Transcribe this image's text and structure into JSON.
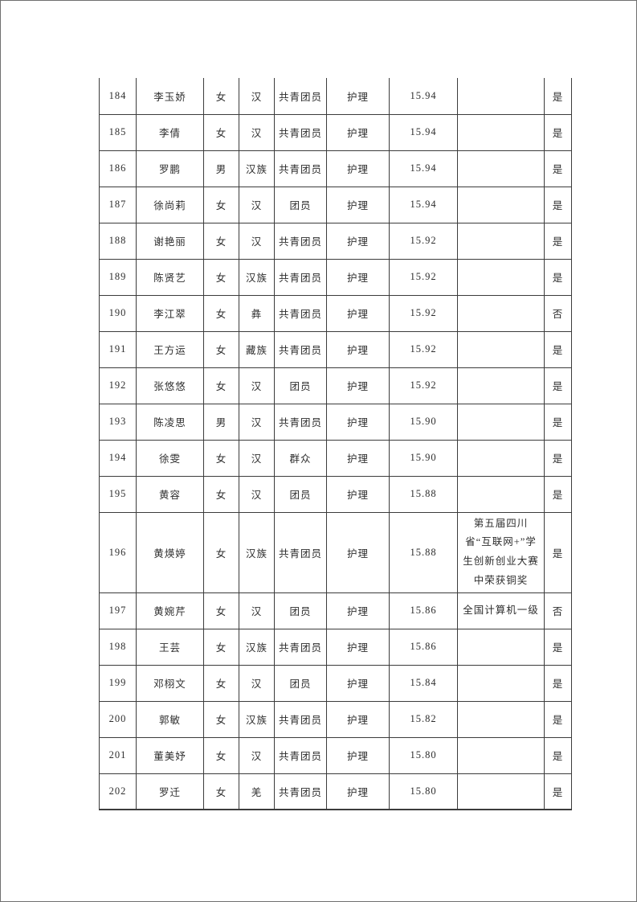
{
  "page": {
    "background_color": "#ffffff",
    "border_color": "#6f6f6f",
    "grid_color": "#3c3c3c"
  },
  "table": {
    "rows": [
      {
        "no": "184",
        "name": "李玉娇",
        "gender": "女",
        "ethnicity": "汉",
        "political": "共青团员",
        "major": "护理",
        "score": "15.94",
        "award": "",
        "confirm": "是"
      },
      {
        "no": "185",
        "name": "李倩",
        "gender": "女",
        "ethnicity": "汉",
        "political": "共青团员",
        "major": "护理",
        "score": "15.94",
        "award": "",
        "confirm": "是"
      },
      {
        "no": "186",
        "name": "罗鹏",
        "gender": "男",
        "ethnicity": "汉族",
        "political": "共青团员",
        "major": "护理",
        "score": "15.94",
        "award": "",
        "confirm": "是"
      },
      {
        "no": "187",
        "name": "徐尚莉",
        "gender": "女",
        "ethnicity": "汉",
        "political": "团员",
        "major": "护理",
        "score": "15.94",
        "award": "",
        "confirm": "是"
      },
      {
        "no": "188",
        "name": "谢艳丽",
        "gender": "女",
        "ethnicity": "汉",
        "political": "共青团员",
        "major": "护理",
        "score": "15.92",
        "award": "",
        "confirm": "是"
      },
      {
        "no": "189",
        "name": "陈贤艺",
        "gender": "女",
        "ethnicity": "汉族",
        "political": "共青团员",
        "major": "护理",
        "score": "15.92",
        "award": "",
        "confirm": "是"
      },
      {
        "no": "190",
        "name": "李江翠",
        "gender": "女",
        "ethnicity": "彝",
        "political": "共青团员",
        "major": "护理",
        "score": "15.92",
        "award": "",
        "confirm": "否"
      },
      {
        "no": "191",
        "name": "王方运",
        "gender": "女",
        "ethnicity": "藏族",
        "political": "共青团员",
        "major": "护理",
        "score": "15.92",
        "award": "",
        "confirm": "是"
      },
      {
        "no": "192",
        "name": "张悠悠",
        "gender": "女",
        "ethnicity": "汉",
        "political": "团员",
        "major": "护理",
        "score": "15.92",
        "award": "",
        "confirm": "是"
      },
      {
        "no": "193",
        "name": "陈凌思",
        "gender": "男",
        "ethnicity": "汉",
        "political": "共青团员",
        "major": "护理",
        "score": "15.90",
        "award": "",
        "confirm": "是"
      },
      {
        "no": "194",
        "name": "徐雯",
        "gender": "女",
        "ethnicity": "汉",
        "political": "群众",
        "major": "护理",
        "score": "15.90",
        "award": "",
        "confirm": "是"
      },
      {
        "no": "195",
        "name": "黄容",
        "gender": "女",
        "ethnicity": "汉",
        "political": "团员",
        "major": "护理",
        "score": "15.88",
        "award": "",
        "confirm": "是"
      },
      {
        "no": "196",
        "name": "黄煐婷",
        "gender": "女",
        "ethnicity": "汉族",
        "political": "共青团员",
        "major": "护理",
        "score": "15.88",
        "award": "第五届四川省“互联网+”学生创新创业大赛中荣获铜奖",
        "confirm": "是"
      },
      {
        "no": "197",
        "name": "黄婉芹",
        "gender": "女",
        "ethnicity": "汉",
        "political": "团员",
        "major": "护理",
        "score": "15.86",
        "award": "全国计算机一级",
        "confirm": "否"
      },
      {
        "no": "198",
        "name": "王芸",
        "gender": "女",
        "ethnicity": "汉族",
        "political": "共青团员",
        "major": "护理",
        "score": "15.86",
        "award": "",
        "confirm": "是"
      },
      {
        "no": "199",
        "name": "邓栩文",
        "gender": "女",
        "ethnicity": "汉",
        "political": "团员",
        "major": "护理",
        "score": "15.84",
        "award": "",
        "confirm": "是"
      },
      {
        "no": "200",
        "name": "郭敏",
        "gender": "女",
        "ethnicity": "汉族",
        "political": "共青团员",
        "major": "护理",
        "score": "15.82",
        "award": "",
        "confirm": "是"
      },
      {
        "no": "201",
        "name": "董美妤",
        "gender": "女",
        "ethnicity": "汉",
        "political": "共青团员",
        "major": "护理",
        "score": "15.80",
        "award": "",
        "confirm": "是"
      },
      {
        "no": "202",
        "name": "罗迁",
        "gender": "女",
        "ethnicity": "羌",
        "political": "共青团员",
        "major": "护理",
        "score": "15.80",
        "award": "",
        "confirm": "是"
      }
    ]
  }
}
